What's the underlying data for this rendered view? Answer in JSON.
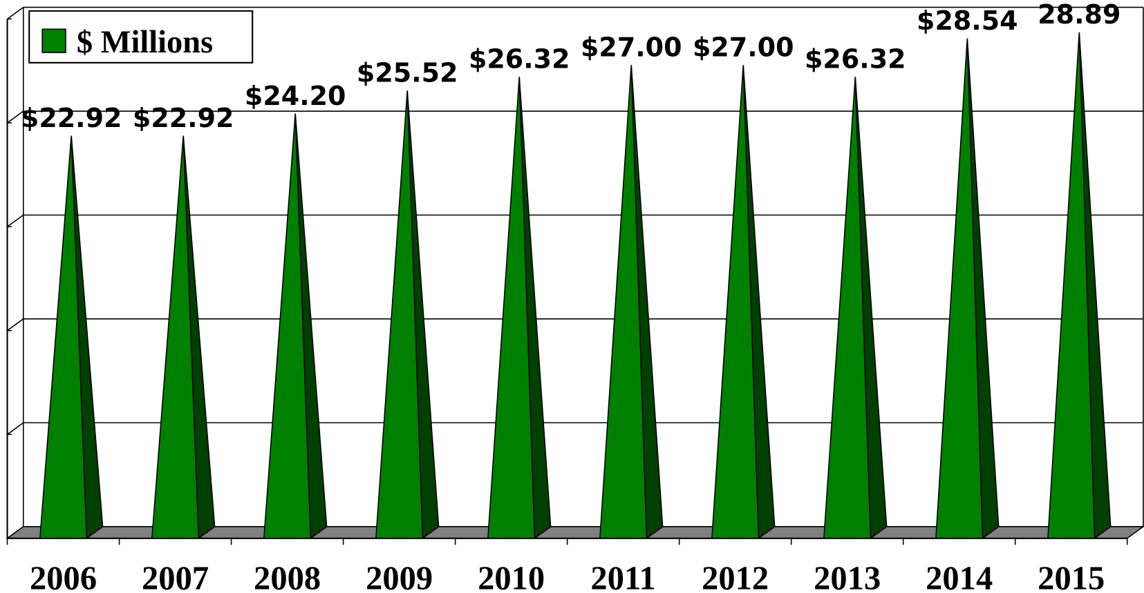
{
  "chart_data": {
    "type": "pyramid",
    "categories": [
      "2006",
      "2007",
      "2008",
      "2009",
      "2010",
      "2011",
      "2012",
      "2013",
      "2014",
      "2015"
    ],
    "series": [
      {
        "name": "$ Millions",
        "color": "#008000",
        "values": [
          22.92,
          22.92,
          24.2,
          25.52,
          26.32,
          27.0,
          27.0,
          26.32,
          28.54,
          28.89
        ],
        "value_labels": [
          "$22.92",
          "$22.92",
          "$24.20",
          "$25.52",
          "$26.32",
          "$27.00",
          "$27.00",
          "$26.32",
          "$28.54",
          "28.89"
        ]
      }
    ],
    "ylim": [
      0,
      30
    ],
    "yticks": [
      0,
      6,
      12,
      18,
      24,
      30
    ],
    "grid": true,
    "legend": "top-left"
  }
}
